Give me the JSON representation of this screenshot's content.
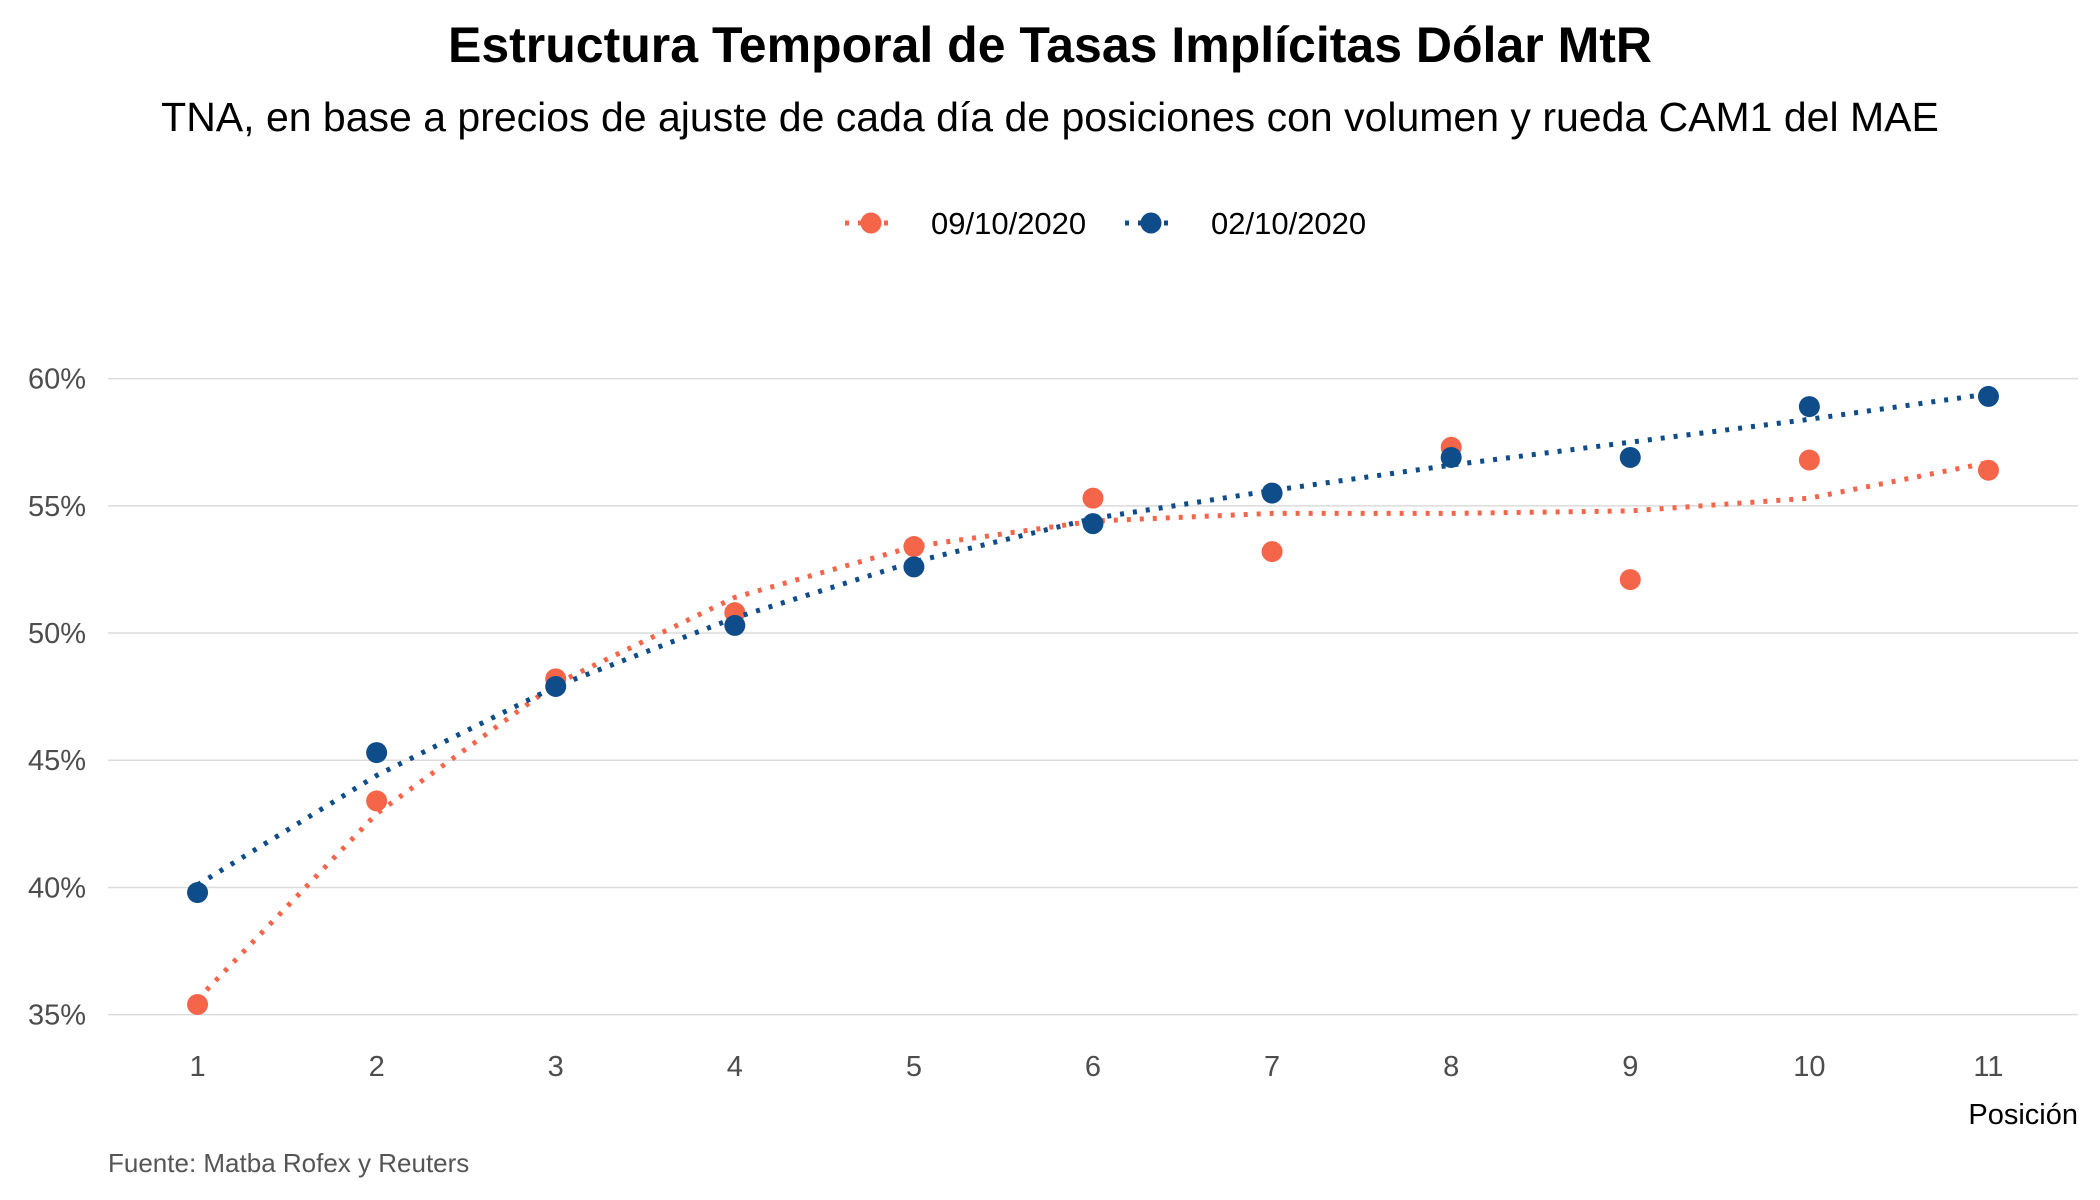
{
  "chart_data": {
    "type": "scatter",
    "title": "Estructura Temporal de Tasas Implícitas Dólar MtR",
    "subtitle": "TNA, en base a precios de ajuste de cada día de posiciones con volumen y rueda CAM1 del MAE",
    "xlabel": "Posición",
    "ylabel": "",
    "caption": "Fuente: Matba Rofex y Reuters",
    "x": [
      1,
      2,
      3,
      4,
      5,
      6,
      7,
      8,
      9,
      10,
      11
    ],
    "xlim": [
      0.5,
      11.5
    ],
    "ylim": [
      34.2,
      62.5
    ],
    "yticks": [
      35,
      40,
      45,
      50,
      55,
      60
    ],
    "ytick_labels": [
      "35%",
      "40%",
      "45%",
      "50%",
      "55%",
      "60%"
    ],
    "xtick_labels": [
      "1",
      "2",
      "3",
      "4",
      "5",
      "6",
      "7",
      "8",
      "9",
      "10",
      "11"
    ],
    "grid": "horizontal",
    "legend_position": "top",
    "series": [
      {
        "name": "09/10/2020",
        "color": "#f4654a",
        "values": [
          35.4,
          43.4,
          48.2,
          50.8,
          53.4,
          55.3,
          53.2,
          57.3,
          52.1,
          56.8,
          56.4
        ],
        "trend": [
          35.6,
          42.9,
          48.0,
          51.4,
          53.4,
          54.4,
          54.7,
          54.7,
          54.8,
          55.3,
          56.7
        ]
      },
      {
        "name": "02/10/2020",
        "color": "#0f4c8a",
        "values": [
          39.8,
          45.3,
          47.9,
          50.3,
          52.6,
          54.3,
          55.5,
          56.9,
          56.9,
          58.9,
          59.3
        ],
        "trend": [
          40.1,
          44.4,
          47.9,
          50.6,
          52.8,
          54.5,
          55.6,
          56.6,
          57.5,
          58.4,
          59.4
        ]
      }
    ]
  }
}
